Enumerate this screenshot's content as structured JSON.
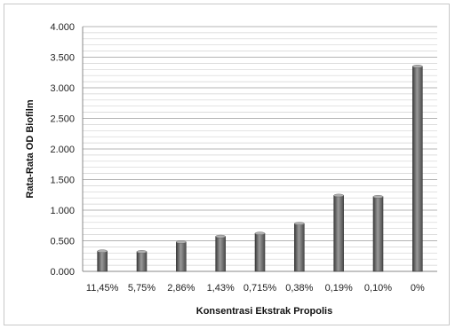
{
  "chart_data": {
    "type": "bar",
    "title": "",
    "xlabel": "Konsentrasi Ekstrak Propolis",
    "ylabel": "Rata-Rata OD Biofilm",
    "categories": [
      "11,45%",
      "5,75%",
      "2,86%",
      "1,43%",
      "0,715%",
      "0,38%",
      "0,19%",
      "0,10%",
      "0%"
    ],
    "values": [
      0.33,
      0.32,
      0.48,
      0.57,
      0.62,
      0.78,
      1.24,
      1.22,
      3.35
    ],
    "ylim": [
      0,
      4
    ],
    "y_ticks": [
      0,
      0.5,
      1,
      1.5,
      2,
      2.5,
      3,
      3.5,
      4
    ],
    "y_tick_labels": [
      "0.000",
      "0.500",
      "1.000",
      "1.500",
      "2.000",
      "2.500",
      "3.000",
      "3.500",
      "4.000"
    ],
    "grid": true,
    "legend": "none",
    "colors": {
      "bar": "#6e6e6e",
      "bar_dark": "#3c3c3c",
      "bar_light": "#9a9a9a",
      "grid": "#d2d2d2"
    }
  }
}
